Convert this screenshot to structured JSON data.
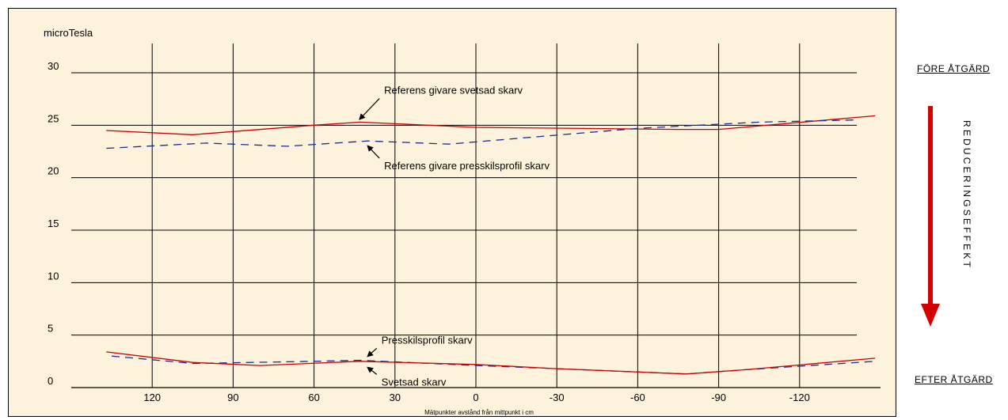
{
  "chart_data": {
    "type": "line",
    "ylabel": "microTesla",
    "xlabel": "Mätpunkter avstånd från mittpunkt i cm",
    "yticks": [
      "0",
      "5",
      "10",
      "15",
      "20",
      "25",
      "30"
    ],
    "xticks": [
      "120",
      "90",
      "60",
      "30",
      "0",
      "-30",
      "-60",
      "-90",
      "-120"
    ],
    "xlim": [
      150,
      -150
    ],
    "ylim": [
      0,
      30
    ],
    "grid": true,
    "series": [
      {
        "name": "Referens givare svetsad skarv",
        "color": "#cc0000",
        "style": "solid",
        "points": [
          [
            137,
            24.5
          ],
          [
            105,
            24.1
          ],
          [
            60,
            25
          ],
          [
            43,
            25.3
          ],
          [
            0,
            24.8
          ],
          [
            -75,
            24.6
          ],
          [
            -90,
            24.6
          ],
          [
            -148,
            25.9
          ]
        ]
      },
      {
        "name": "Referens givare presskilsprofil skarv",
        "color": "#1a2d8c",
        "style": "dashed",
        "points": [
          [
            137,
            22.8
          ],
          [
            100,
            23.3
          ],
          [
            70,
            23
          ],
          [
            40,
            23.5
          ],
          [
            10,
            23.2
          ],
          [
            -60,
            24.7
          ],
          [
            -105,
            25.3
          ],
          [
            -140,
            25.5
          ]
        ]
      },
      {
        "name": "Presskilsprofil skarv",
        "color": "#1a2d8c",
        "style": "dashed",
        "points": [
          [
            135,
            3
          ],
          [
            105,
            2.3
          ],
          [
            60,
            2.5
          ],
          [
            43,
            2.6
          ],
          [
            0,
            2.1
          ],
          [
            -30,
            1.8
          ],
          [
            -78,
            1.3
          ],
          [
            -100,
            1.7
          ],
          [
            -148,
            2.5
          ]
        ]
      },
      {
        "name": "Svetsad skarv",
        "color": "#cc0000",
        "style": "solid",
        "points": [
          [
            137,
            3.4
          ],
          [
            105,
            2.4
          ],
          [
            80,
            2.1
          ],
          [
            43,
            2.5
          ],
          [
            0,
            2.2
          ],
          [
            -30,
            1.8
          ],
          [
            -78,
            1.3
          ],
          [
            -100,
            1.7
          ],
          [
            -148,
            2.8
          ]
        ]
      }
    ],
    "annotations": [
      {
        "text": "Referens givare svetsad skarv",
        "x": 34,
        "y": 28.0,
        "arrow_to": [
          43,
          25.6
        ]
      },
      {
        "text": "Referens givare presskilsprofil skarv",
        "x": 34,
        "y": 20.8,
        "arrow_to": [
          40,
          23.0
        ]
      },
      {
        "text": "Presskilsprofil skarv",
        "x": 35,
        "y": 4.2,
        "arrow_to": [
          40,
          3.0
        ]
      },
      {
        "text": "Svetsad skarv",
        "x": 35,
        "y": 0.2,
        "arrow_to": [
          40,
          1.9
        ]
      }
    ]
  },
  "side": {
    "before": "FÖRE ÅTGÄRD",
    "after": "EFTER ÅTGÄRD",
    "effect": "REDUCERINGSEFFEKT",
    "arrow_color": "#d40000"
  }
}
